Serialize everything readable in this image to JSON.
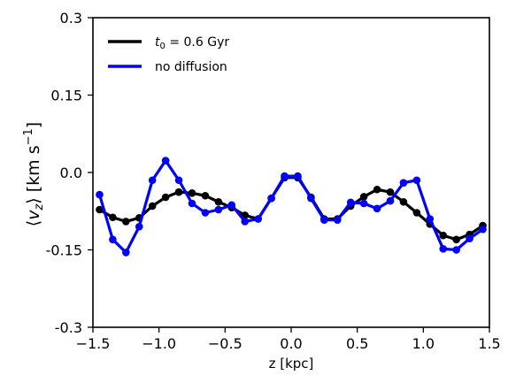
{
  "chart_data": {
    "type": "line",
    "xlabel": "z [kpc]",
    "ylabel": "⟨v_z⟩ [km s^-1]",
    "xlim": [
      -1.5,
      1.5
    ],
    "ylim": [
      -0.3,
      0.3
    ],
    "xticks": [
      -1.5,
      -1.0,
      -0.5,
      0.0,
      0.5,
      1.0,
      1.5
    ],
    "xtick_labels": [
      "−1.5",
      "−1.0",
      "−0.5",
      "0.0",
      "0.5",
      "1.0",
      "1.5"
    ],
    "yticks": [
      0.3,
      0.15,
      0.0,
      -0.15,
      -0.3
    ],
    "ytick_labels": [
      "0.3",
      "0.15",
      "0.0",
      "-0.15",
      "-0.3"
    ],
    "grid": false,
    "legend_position": "top-left",
    "x": [
      -1.45,
      -1.35,
      -1.25,
      -1.15,
      -1.05,
      -0.95,
      -0.85,
      -0.75,
      -0.65,
      -0.55,
      -0.45,
      -0.35,
      -0.25,
      -0.15,
      -0.05,
      0.05,
      0.15,
      0.25,
      0.35,
      0.45,
      0.55,
      0.65,
      0.75,
      0.85,
      0.95,
      1.05,
      1.15,
      1.25,
      1.35,
      1.45
    ],
    "series": [
      {
        "name": "t0 = 0.6 Gyr",
        "color": "#000000",
        "values": [
          -0.072,
          -0.087,
          -0.095,
          -0.088,
          -0.065,
          -0.048,
          -0.038,
          -0.04,
          -0.045,
          -0.057,
          -0.068,
          -0.083,
          -0.09,
          -0.05,
          -0.01,
          -0.01,
          -0.048,
          -0.09,
          -0.09,
          -0.065,
          -0.047,
          -0.033,
          -0.038,
          -0.057,
          -0.078,
          -0.1,
          -0.122,
          -0.13,
          -0.12,
          -0.103
        ]
      },
      {
        "name": "no diffusion",
        "color": "#0000ff",
        "values": [
          -0.043,
          -0.13,
          -0.155,
          -0.105,
          -0.015,
          0.023,
          -0.015,
          -0.06,
          -0.078,
          -0.072,
          -0.063,
          -0.095,
          -0.09,
          -0.05,
          -0.007,
          -0.007,
          -0.05,
          -0.092,
          -0.092,
          -0.058,
          -0.06,
          -0.07,
          -0.055,
          -0.02,
          -0.015,
          -0.09,
          -0.148,
          -0.15,
          -0.128,
          -0.11
        ]
      }
    ]
  }
}
